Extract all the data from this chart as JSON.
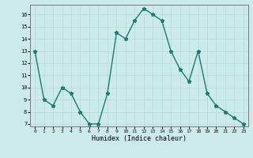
{
  "x": [
    0,
    1,
    2,
    3,
    4,
    5,
    6,
    7,
    8,
    9,
    10,
    11,
    12,
    13,
    14,
    15,
    16,
    17,
    18,
    19,
    20,
    21,
    22,
    23
  ],
  "y": [
    13,
    9,
    8.5,
    10,
    9.5,
    8,
    7,
    7,
    9.5,
    14.5,
    14,
    15.5,
    16.5,
    16,
    15.5,
    13,
    11.5,
    10.5,
    13,
    9.5,
    8.5,
    8,
    7.5,
    7
  ],
  "xlabel": "Humidex (Indice chaleur)",
  "ylim_bottom": 6.8,
  "ylim_top": 16.8,
  "xlim_left": -0.5,
  "xlim_right": 23.5,
  "yticks": [
    7,
    8,
    9,
    10,
    11,
    12,
    13,
    14,
    15,
    16
  ],
  "xticks": [
    0,
    1,
    2,
    3,
    4,
    5,
    6,
    7,
    8,
    9,
    10,
    11,
    12,
    13,
    14,
    15,
    16,
    17,
    18,
    19,
    20,
    21,
    22,
    23
  ],
  "line_color": "#1b7b6e",
  "bg_color": "#cceaea",
  "grid_color": "#b8d8d8",
  "marker": "*",
  "marker_size": 3.5,
  "linewidth": 1.0
}
